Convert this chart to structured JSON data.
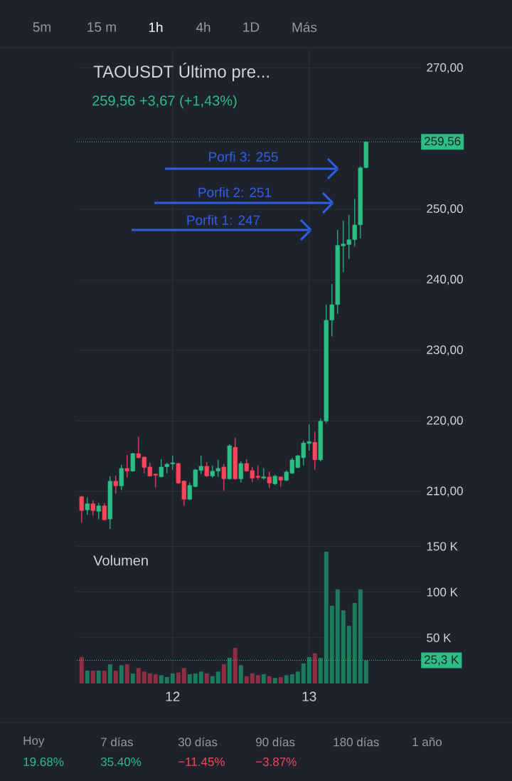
{
  "chart_data": [
    {
      "type": "candlestick",
      "title": "TAOUSDT Último pre...",
      "subtitle": "259,56  +3,67 (+1,43%)",
      "x": [
        11.3333,
        11.375,
        11.4167,
        11.4583,
        11.5,
        11.5417,
        11.5833,
        11.625,
        11.6667,
        11.7083,
        11.75,
        11.7917,
        11.8333,
        11.875,
        11.9167,
        11.9583,
        12,
        12.0417,
        12.0833,
        12.125,
        12.1667,
        12.2083,
        12.25,
        12.2917,
        12.3333,
        12.375,
        12.4167,
        12.4583,
        12.5,
        12.5417,
        12.5833,
        12.625,
        12.6667,
        12.7083,
        12.75,
        12.7917,
        12.8333,
        12.875,
        12.9167,
        12.9583,
        13,
        13.0417,
        13.0833,
        13.125,
        13.1667,
        13.2083,
        13.25,
        13.2917,
        13.3333,
        13.375,
        13.4167
      ],
      "ohlc": [
        [
          209.3,
          209.4,
          205.6,
          207.3
        ],
        [
          207.4,
          209.2,
          206.7,
          208.3
        ],
        [
          208.3,
          208.8,
          206.6,
          207.3
        ],
        [
          207.2,
          208.4,
          206.1,
          208.0
        ],
        [
          208.0,
          208.4,
          205.9,
          206.0
        ],
        [
          206.1,
          212.2,
          204.7,
          211.5
        ],
        [
          211.5,
          212.3,
          209.7,
          210.8
        ],
        [
          210.8,
          213.8,
          210.2,
          213.3
        ],
        [
          213.3,
          215.2,
          212.0,
          212.9
        ],
        [
          212.9,
          215.5,
          212.8,
          215.4
        ],
        [
          215.4,
          217.8,
          214.7,
          214.8
        ],
        [
          214.9,
          215.0,
          212.6,
          213.4
        ],
        [
          213.5,
          214.1,
          212.1,
          212.2
        ],
        [
          212.5,
          212.5,
          210.6,
          212.3
        ],
        [
          212.1,
          214.6,
          212.0,
          213.5
        ],
        [
          213.5,
          214.1,
          212.6,
          213.9
        ],
        [
          213.9,
          215.1,
          213.1,
          214.1
        ],
        [
          214.0,
          214.1,
          211.1,
          211.2
        ],
        [
          211.5,
          211.6,
          208.0,
          208.9
        ],
        [
          208.9,
          211.3,
          208.8,
          210.9
        ],
        [
          210.7,
          213.2,
          210.6,
          213.1
        ],
        [
          213.0,
          215.1,
          212.5,
          213.6
        ],
        [
          213.6,
          214.2,
          212.1,
          212.2
        ],
        [
          212.2,
          213.7,
          212.0,
          212.9
        ],
        [
          212.9,
          214.5,
          212.1,
          213.3
        ],
        [
          213.5,
          213.9,
          210.1,
          211.8
        ],
        [
          211.8,
          216.7,
          211.7,
          216.5
        ],
        [
          216.3,
          217.6,
          211.7,
          211.8
        ],
        [
          211.8,
          214.3,
          211.3,
          214.0
        ],
        [
          214.0,
          214.6,
          212.8,
          212.9
        ],
        [
          213.0,
          213.5,
          211.4,
          211.9
        ],
        [
          212.2,
          213.7,
          211.7,
          212.0
        ],
        [
          211.9,
          213.3,
          211.7,
          212.1
        ],
        [
          212.1,
          212.8,
          210.5,
          211.2
        ],
        [
          211.1,
          212.4,
          210.9,
          212.2
        ],
        [
          212.1,
          212.1,
          210.7,
          211.6
        ],
        [
          211.6,
          213.0,
          211.5,
          212.8
        ],
        [
          212.6,
          214.8,
          212.5,
          214.5
        ],
        [
          213.4,
          215.2,
          213.3,
          215.1
        ],
        [
          214.8,
          217.2,
          213.7,
          216.9
        ],
        [
          216.8,
          219.5,
          215.8,
          217.1
        ],
        [
          217.0,
          218.5,
          213.1,
          214.5
        ],
        [
          214.5,
          220.4,
          214.3,
          220.0
        ],
        [
          220.0,
          236.5,
          219.7,
          234.3
        ],
        [
          234.3,
          239.4,
          232.0,
          236.5
        ],
        [
          236.5,
          247.1,
          235.2,
          244.9
        ],
        [
          244.8,
          248.4,
          241.1,
          245.1
        ],
        [
          245.0,
          249.2,
          243.0,
          245.7
        ],
        [
          245.7,
          251.5,
          244.7,
          247.8
        ],
        [
          247.8,
          256.1,
          245.9,
          255.9
        ],
        [
          255.9,
          259.6,
          255.8,
          259.56
        ]
      ],
      "colors": [
        "#f6465d",
        "#2ebd85",
        "#f6465d",
        "#2ebd85",
        "#f6465d",
        "#2ebd85",
        "#f6465d",
        "#2ebd85",
        "#f6465d",
        "#2ebd85",
        "#f6465d",
        "#f6465d",
        "#f6465d",
        "#f6465d",
        "#2ebd85",
        "#2ebd85",
        "#2ebd85",
        "#f6465d",
        "#f6465d",
        "#2ebd85",
        "#2ebd85",
        "#2ebd85",
        "#f6465d",
        "#2ebd85",
        "#2ebd85",
        "#f6465d",
        "#2ebd85",
        "#f6465d",
        "#2ebd85",
        "#f6465d",
        "#f6465d",
        "#f6465d",
        "#2ebd85",
        "#f6465d",
        "#2ebd85",
        "#f6465d",
        "#2ebd85",
        "#2ebd85",
        "#2ebd85",
        "#2ebd85",
        "#2ebd85",
        "#f6465d",
        "#2ebd85",
        "#2ebd85",
        "#2ebd85",
        "#2ebd85",
        "#2ebd85",
        "#2ebd85",
        "#2ebd85",
        "#2ebd85",
        "#2ebd85"
      ],
      "xlim": [
        11.298,
        13.819
      ],
      "ylim": [
        203.8,
        272.6
      ],
      "xticks": [
        12,
        13
      ],
      "yticks": [
        {
          "value": 210,
          "label": "210,00"
        },
        {
          "value": 220,
          "label": "220,00"
        },
        {
          "value": 230,
          "label": "230,00"
        },
        {
          "value": 240,
          "label": "240,00"
        },
        {
          "value": 250,
          "label": "250,00"
        },
        {
          "value": 260,
          "label": null
        },
        {
          "value": 270,
          "label": "270,00"
        }
      ],
      "grid": true,
      "tick_labels": "y",
      "ref_lines": [
        {
          "axis": "y",
          "value": 259.56,
          "label": "259,56",
          "color": "#2ebd85",
          "line_style": "dotted"
        }
      ],
      "annotations": [
        "Porfi 3: 255",
        "Porfit 2: 251",
        "Porfit 1: 247",
        "5m",
        "15 m",
        "1h",
        "4h",
        "1D",
        "Más"
      ]
    },
    {
      "type": "bar",
      "x": [
        11.3333,
        11.375,
        11.4167,
        11.4583,
        11.5,
        11.5417,
        11.5833,
        11.625,
        11.6667,
        11.7083,
        11.75,
        11.7917,
        11.8333,
        11.875,
        11.9167,
        11.9583,
        12,
        12.0417,
        12.0833,
        12.125,
        12.1667,
        12.2083,
        12.25,
        12.2917,
        12.3333,
        12.375,
        12.4167,
        12.4583,
        12.5,
        12.5417,
        12.5833,
        12.625,
        12.6667,
        12.7083,
        12.75,
        12.7917,
        12.8333,
        12.875,
        12.9167,
        12.9583,
        13,
        13.0417,
        13.0833,
        13.125,
        13.1667,
        13.2083,
        13.25,
        13.2917,
        13.3333,
        13.375,
        13.4167
      ],
      "values": [
        29,
        14,
        14,
        14,
        14,
        21,
        14,
        20,
        21,
        11,
        17,
        13,
        11,
        10,
        9,
        7,
        11,
        12,
        17,
        10,
        11,
        13,
        11,
        8,
        13,
        21,
        28,
        39,
        20,
        8,
        11,
        9,
        10,
        8,
        6,
        7,
        9,
        10,
        13,
        22,
        29,
        33,
        28,
        144,
        85,
        103,
        80,
        63,
        88,
        103,
        25.3
      ],
      "colors": [
        "#8c2f45",
        "#1f7a5c",
        "#8c2f45",
        "#1f7a5c",
        "#8c2f45",
        "#1f7a5c",
        "#8c2f45",
        "#1f7a5c",
        "#8c2f45",
        "#1f7a5c",
        "#8c2f45",
        "#8c2f45",
        "#8c2f45",
        "#8c2f45",
        "#1f7a5c",
        "#1f7a5c",
        "#1f7a5c",
        "#8c2f45",
        "#8c2f45",
        "#1f7a5c",
        "#1f7a5c",
        "#1f7a5c",
        "#8c2f45",
        "#1f7a5c",
        "#1f7a5c",
        "#8c2f45",
        "#1f7a5c",
        "#8c2f45",
        "#1f7a5c",
        "#8c2f45",
        "#8c2f45",
        "#8c2f45",
        "#1f7a5c",
        "#8c2f45",
        "#1f7a5c",
        "#8c2f45",
        "#1f7a5c",
        "#1f7a5c",
        "#1f7a5c",
        "#1f7a5c",
        "#1f7a5c",
        "#8c2f45",
        "#1f7a5c",
        "#1f7a5c",
        "#1f7a5c",
        "#1f7a5c",
        "#1f7a5c",
        "#1f7a5c",
        "#1f7a5c",
        "#1f7a5c",
        "#1f7a5c"
      ],
      "xlim": [
        11.298,
        13.819
      ],
      "ylim": [
        0,
        162
      ],
      "xticks": [
        12,
        13
      ],
      "yticks": [
        {
          "value": 50,
          "label": "50 K"
        },
        {
          "value": 100,
          "label": "100 K"
        },
        {
          "value": 150,
          "label": "150 K"
        }
      ],
      "grid": true,
      "ref_lines": [
        {
          "axis": "y",
          "value": 25.3,
          "label": "25,3 K",
          "color": "#2ebd85",
          "line_style": "dotted"
        }
      ],
      "annotations": [
        "Volumen",
        "Hoy",
        "19.68%",
        "7 días",
        "35.40%",
        "30 días",
        "−11.45%",
        "90 días",
        "−3.87%",
        "180 días",
        "1 año"
      ]
    }
  ]
}
